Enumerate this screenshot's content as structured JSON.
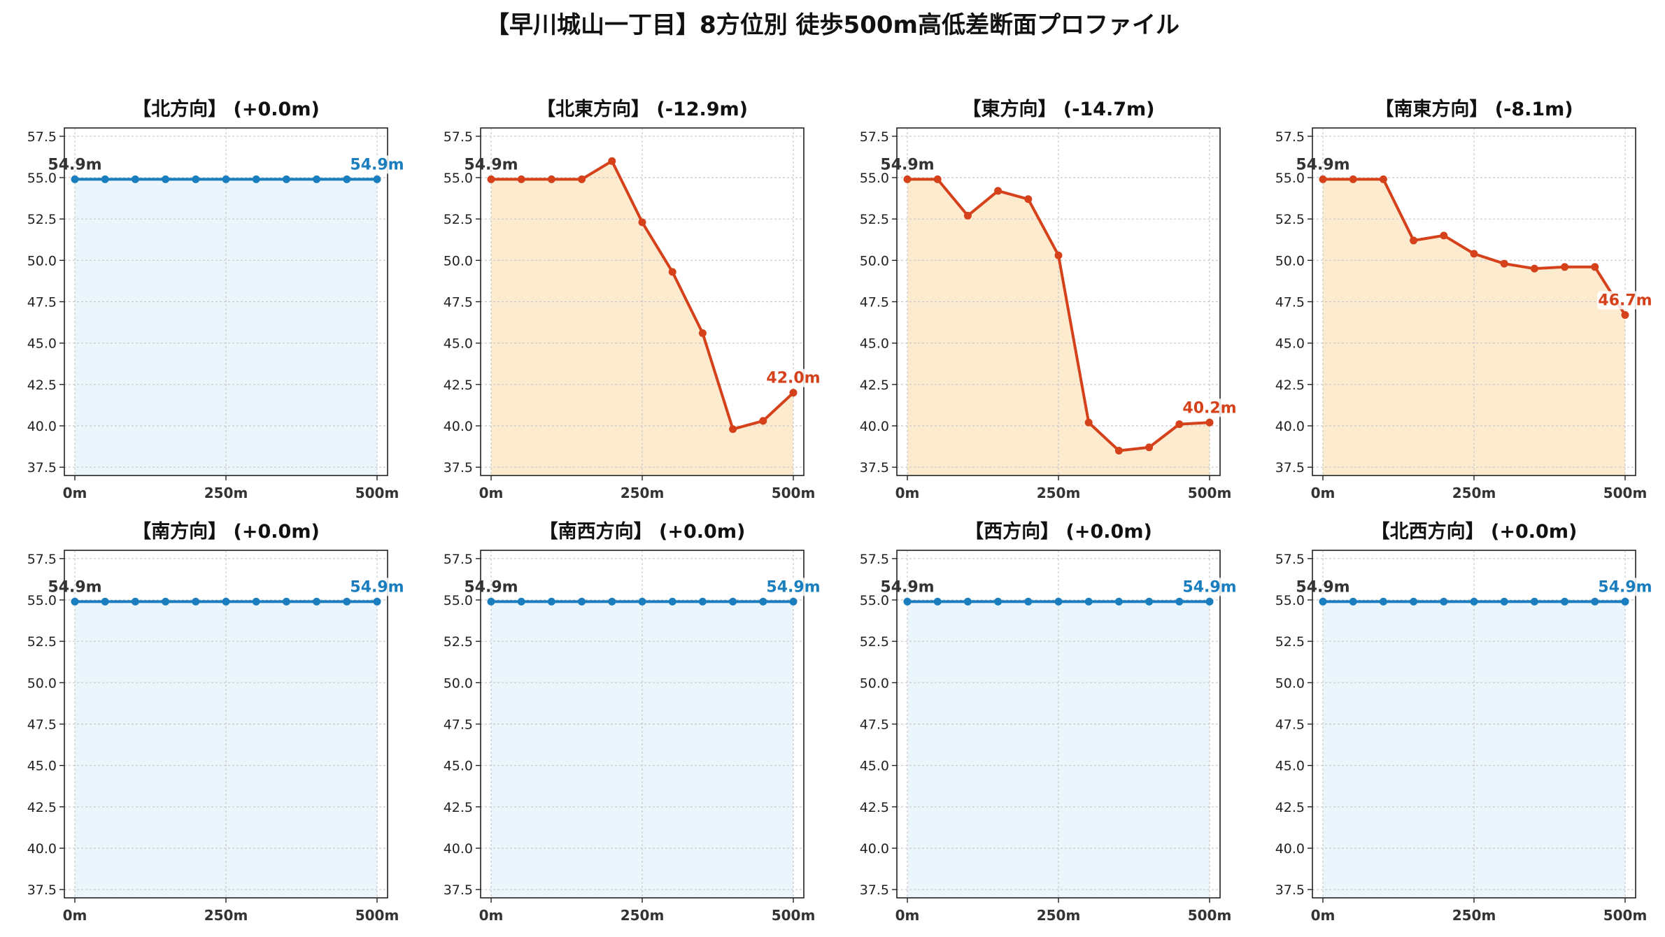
{
  "title": "【早川城山一丁目】8方位別 徒歩500m高低差断面プロファイル",
  "colors": {
    "flat_line": "#1a7dbd",
    "flat_fill": "#eaf6fb",
    "drop_line": "#d4411a",
    "drop_fill": "#fdebd0",
    "start_label": "#333333",
    "grid": "#c8c8c8"
  },
  "chart_data": [
    {
      "type": "area",
      "title": "【北方向】 (+0.0m)",
      "x": [
        0,
        50,
        100,
        150,
        200,
        250,
        300,
        350,
        400,
        450,
        500
      ],
      "values": [
        54.9,
        54.9,
        54.9,
        54.9,
        54.9,
        54.9,
        54.9,
        54.9,
        54.9,
        54.9,
        54.9
      ],
      "ylim": [
        37,
        58
      ],
      "yticks": [
        "37.5",
        "40.0",
        "42.5",
        "45.0",
        "47.5",
        "50.0",
        "52.5",
        "55.0",
        "57.5"
      ],
      "xticks": [
        "0m",
        "250m",
        "500m"
      ],
      "start_label": "54.9m",
      "end_label": "54.9m",
      "style": "flat",
      "grid": true
    },
    {
      "type": "area",
      "title": "【北東方向】 (-12.9m)",
      "x": [
        0,
        50,
        100,
        150,
        200,
        250,
        300,
        350,
        400,
        450,
        500
      ],
      "values": [
        54.9,
        54.9,
        54.9,
        54.9,
        56.0,
        52.3,
        49.3,
        45.6,
        39.8,
        40.3,
        42.0
      ],
      "ylim": [
        37,
        58
      ],
      "yticks": [
        "37.5",
        "40.0",
        "42.5",
        "45.0",
        "47.5",
        "50.0",
        "52.5",
        "55.0",
        "57.5"
      ],
      "xticks": [
        "0m",
        "250m",
        "500m"
      ],
      "start_label": "54.9m",
      "end_label": "42.0m",
      "style": "drop",
      "grid": true
    },
    {
      "type": "area",
      "title": "【東方向】 (-14.7m)",
      "x": [
        0,
        50,
        100,
        150,
        200,
        250,
        300,
        350,
        400,
        450,
        500
      ],
      "values": [
        54.9,
        54.9,
        52.7,
        54.2,
        53.7,
        50.3,
        40.2,
        38.5,
        38.7,
        40.1,
        40.2
      ],
      "ylim": [
        37,
        58
      ],
      "yticks": [
        "37.5",
        "40.0",
        "42.5",
        "45.0",
        "47.5",
        "50.0",
        "52.5",
        "55.0",
        "57.5"
      ],
      "xticks": [
        "0m",
        "250m",
        "500m"
      ],
      "start_label": "54.9m",
      "end_label": "40.2m",
      "style": "drop",
      "grid": true
    },
    {
      "type": "area",
      "title": "【南東方向】 (-8.1m)",
      "x": [
        0,
        50,
        100,
        150,
        200,
        250,
        300,
        350,
        400,
        450,
        500
      ],
      "values": [
        54.9,
        54.9,
        54.9,
        51.2,
        51.5,
        50.4,
        49.8,
        49.5,
        49.6,
        49.6,
        46.7
      ],
      "ylim": [
        37,
        58
      ],
      "yticks": [
        "37.5",
        "40.0",
        "42.5",
        "45.0",
        "47.5",
        "50.0",
        "52.5",
        "55.0",
        "57.5"
      ],
      "xticks": [
        "0m",
        "250m",
        "500m"
      ],
      "start_label": "54.9m",
      "end_label": "46.7m",
      "style": "drop",
      "grid": true
    },
    {
      "type": "area",
      "title": "【南方向】 (+0.0m)",
      "x": [
        0,
        50,
        100,
        150,
        200,
        250,
        300,
        350,
        400,
        450,
        500
      ],
      "values": [
        54.9,
        54.9,
        54.9,
        54.9,
        54.9,
        54.9,
        54.9,
        54.9,
        54.9,
        54.9,
        54.9
      ],
      "ylim": [
        37,
        58
      ],
      "yticks": [
        "37.5",
        "40.0",
        "42.5",
        "45.0",
        "47.5",
        "50.0",
        "52.5",
        "55.0",
        "57.5"
      ],
      "xticks": [
        "0m",
        "250m",
        "500m"
      ],
      "start_label": "54.9m",
      "end_label": "54.9m",
      "style": "flat",
      "grid": true
    },
    {
      "type": "area",
      "title": "【南西方向】 (+0.0m)",
      "x": [
        0,
        50,
        100,
        150,
        200,
        250,
        300,
        350,
        400,
        450,
        500
      ],
      "values": [
        54.9,
        54.9,
        54.9,
        54.9,
        54.9,
        54.9,
        54.9,
        54.9,
        54.9,
        54.9,
        54.9
      ],
      "ylim": [
        37,
        58
      ],
      "yticks": [
        "37.5",
        "40.0",
        "42.5",
        "45.0",
        "47.5",
        "50.0",
        "52.5",
        "55.0",
        "57.5"
      ],
      "xticks": [
        "0m",
        "250m",
        "500m"
      ],
      "start_label": "54.9m",
      "end_label": "54.9m",
      "style": "flat",
      "grid": true
    },
    {
      "type": "area",
      "title": "【西方向】 (+0.0m)",
      "x": [
        0,
        50,
        100,
        150,
        200,
        250,
        300,
        350,
        400,
        450,
        500
      ],
      "values": [
        54.9,
        54.9,
        54.9,
        54.9,
        54.9,
        54.9,
        54.9,
        54.9,
        54.9,
        54.9,
        54.9
      ],
      "ylim": [
        37,
        58
      ],
      "yticks": [
        "37.5",
        "40.0",
        "42.5",
        "45.0",
        "47.5",
        "50.0",
        "52.5",
        "55.0",
        "57.5"
      ],
      "xticks": [
        "0m",
        "250m",
        "500m"
      ],
      "start_label": "54.9m",
      "end_label": "54.9m",
      "style": "flat",
      "grid": true
    },
    {
      "type": "area",
      "title": "【北西方向】 (+0.0m)",
      "x": [
        0,
        50,
        100,
        150,
        200,
        250,
        300,
        350,
        400,
        450,
        500
      ],
      "values": [
        54.9,
        54.9,
        54.9,
        54.9,
        54.9,
        54.9,
        54.9,
        54.9,
        54.9,
        54.9,
        54.9
      ],
      "ylim": [
        37,
        58
      ],
      "yticks": [
        "37.5",
        "40.0",
        "42.5",
        "45.0",
        "47.5",
        "50.0",
        "52.5",
        "55.0",
        "57.5"
      ],
      "xticks": [
        "0m",
        "250m",
        "500m"
      ],
      "start_label": "54.9m",
      "end_label": "54.9m",
      "style": "flat",
      "grid": true
    }
  ]
}
